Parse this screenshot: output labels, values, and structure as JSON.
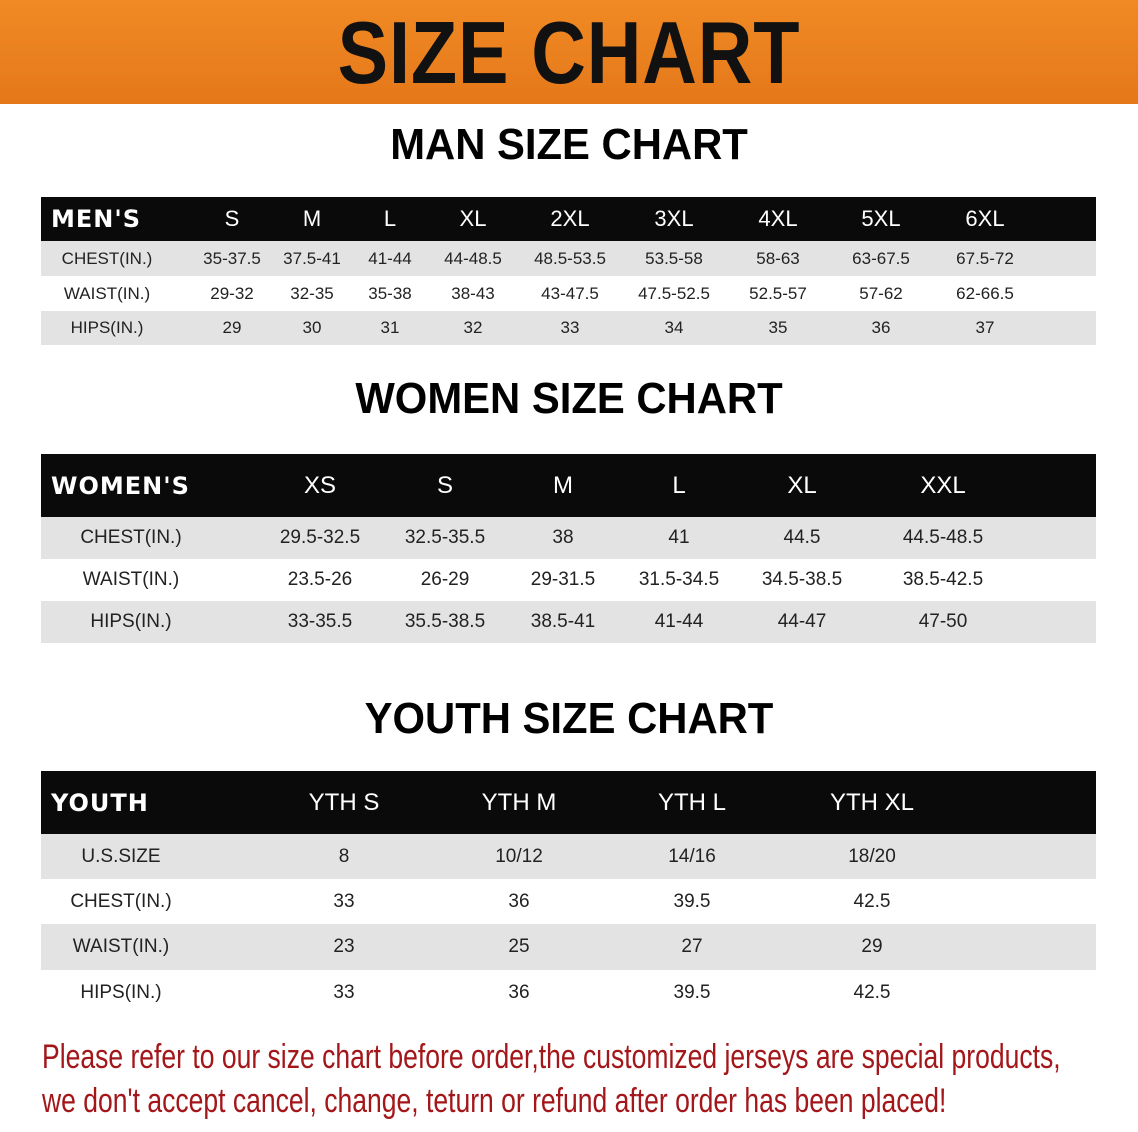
{
  "banner_title": "SIZE CHART",
  "accent_color": "#e8801c",
  "men": {
    "title": "MAN SIZE CHART",
    "header": [
      "MEN'S",
      "S",
      "M",
      "L",
      "XL",
      "2XL",
      "3XL",
      "4XL",
      "5XL",
      "6XL"
    ],
    "rows": [
      [
        "CHEST(IN.)",
        "35-37.5",
        "37.5-41",
        "41-44",
        "44-48.5",
        "48.5-53.5",
        "53.5-58",
        "58-63",
        "63-67.5",
        "67.5-72"
      ],
      [
        "WAIST(IN.)",
        "29-32",
        "32-35",
        "35-38",
        "38-43",
        "43-47.5",
        "47.5-52.5",
        "52.5-57",
        "57-62",
        "62-66.5"
      ],
      [
        "HIPS(IN.)",
        "29",
        "30",
        "31",
        "32",
        "33",
        "34",
        "35",
        "36",
        "37"
      ]
    ]
  },
  "women": {
    "title": "WOMEN SIZE CHART",
    "header": [
      "WOMEN'S",
      "XS",
      "S",
      "M",
      "L",
      "XL",
      "XXL"
    ],
    "rows": [
      [
        "CHEST(IN.)",
        "29.5-32.5",
        "32.5-35.5",
        "38",
        "41",
        "44.5",
        "44.5-48.5"
      ],
      [
        "WAIST(IN.)",
        "23.5-26",
        "26-29",
        "29-31.5",
        "31.5-34.5",
        "34.5-38.5",
        "38.5-42.5"
      ],
      [
        "HIPS(IN.)",
        "33-35.5",
        "35.5-38.5",
        "38.5-41",
        "41-44",
        "44-47",
        "47-50"
      ]
    ]
  },
  "youth": {
    "title": "YOUTH SIZE CHART",
    "header": [
      "YOUTH",
      "YTH S",
      "YTH M",
      "YTH L",
      "YTH XL"
    ],
    "rows": [
      [
        "U.S.SIZE",
        "8",
        "10/12",
        "14/16",
        "18/20"
      ],
      [
        "CHEST(IN.)",
        "33",
        "36",
        "39.5",
        "42.5"
      ],
      [
        "WAIST(IN.)",
        "23",
        "25",
        "27",
        "29"
      ],
      [
        "HIPS(IN.)",
        "33",
        "36",
        "39.5",
        "42.5"
      ]
    ]
  },
  "notice": {
    "line1": "Please refer to our size chart before order,the customized jerseys are special products,",
    "line2": "we don't accept cancel, change, teturn or refund after order has been placed!"
  }
}
